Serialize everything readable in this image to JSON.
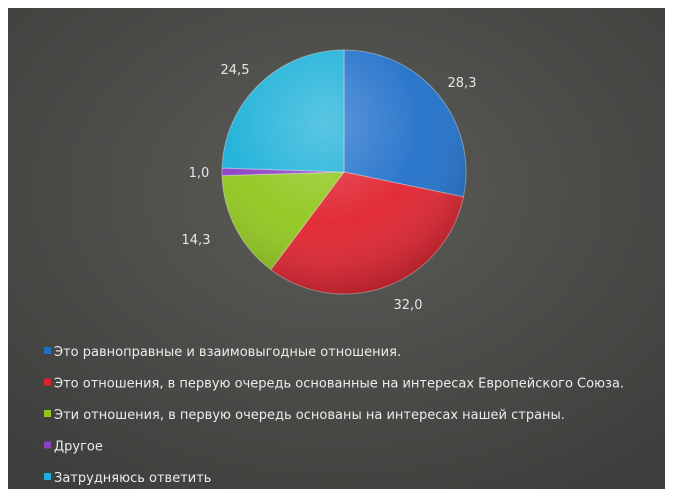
{
  "chart_data": {
    "type": "pie",
    "categories": [
      "Это равноправные и взаимовыгодные отношения.",
      "Это отношения, в первую очередь основанные на интересах Европейского Союза.",
      "Эти отношения, в первую очередь основаны на интересах нашей страны.",
      "Другое",
      "Затрудняюсь ответить"
    ],
    "values": [
      28.3,
      32.0,
      14.3,
      1.0,
      24.5
    ],
    "value_labels": [
      "28,3",
      "32,0",
      "14,3",
      "1,0",
      "24,5"
    ],
    "colors": [
      "#1f6fc9",
      "#e0222e",
      "#8fc71d",
      "#8a3fc4",
      "#1ab0d8"
    ],
    "title": "",
    "legend_position": "bottom-left",
    "background_color": "#4a4a48"
  }
}
